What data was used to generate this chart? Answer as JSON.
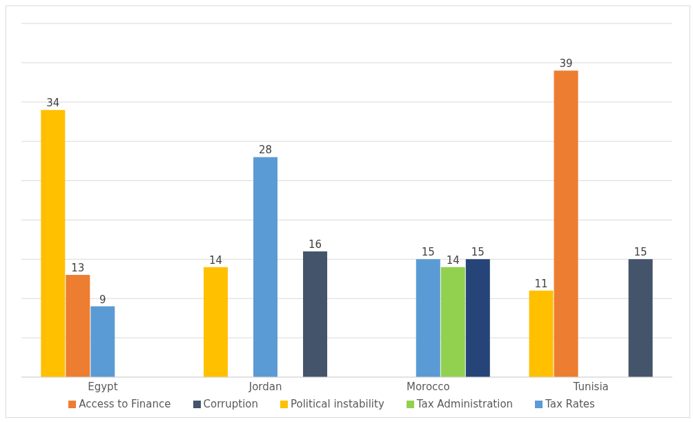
{
  "chart_data": {
    "type": "bar",
    "categories": [
      "Egypt",
      "Jordan",
      "Morocco",
      "Tunisia"
    ],
    "series": [
      {
        "name": "Political instability",
        "color": "#ffc000",
        "values": [
          34,
          14,
          null,
          11
        ]
      },
      {
        "name": "Access to Finance",
        "color": "#ed7d31",
        "values": [
          13,
          null,
          null,
          39
        ]
      },
      {
        "name": "Tax Rates",
        "color": "#5b9bd5",
        "values": [
          9,
          28,
          15,
          null
        ]
      },
      {
        "name": "Tax Administration",
        "color": "#92d050",
        "values": [
          null,
          null,
          14,
          null
        ]
      },
      {
        "name": "Corruption",
        "color": "#44546a",
        "colors": [
          "#44546a",
          "#44546a",
          "#264478",
          "#44546a"
        ],
        "values": [
          null,
          16,
          15,
          15
        ]
      }
    ],
    "ylim": [
      0,
      45
    ],
    "yticks": [
      {
        "value": 0,
        "label": null
      },
      {
        "value": 5,
        "label": null
      },
      {
        "value": 10,
        "label": null
      },
      {
        "value": 15,
        "label": null
      },
      {
        "value": 20,
        "label": null
      },
      {
        "value": 25,
        "label": null
      },
      {
        "value": 30,
        "label": null
      },
      {
        "value": 35,
        "label": null
      },
      {
        "value": 40,
        "label": null
      },
      {
        "value": 45,
        "label": null
      }
    ],
    "grid": "y",
    "legend": "bottom",
    "data_labels": true
  }
}
